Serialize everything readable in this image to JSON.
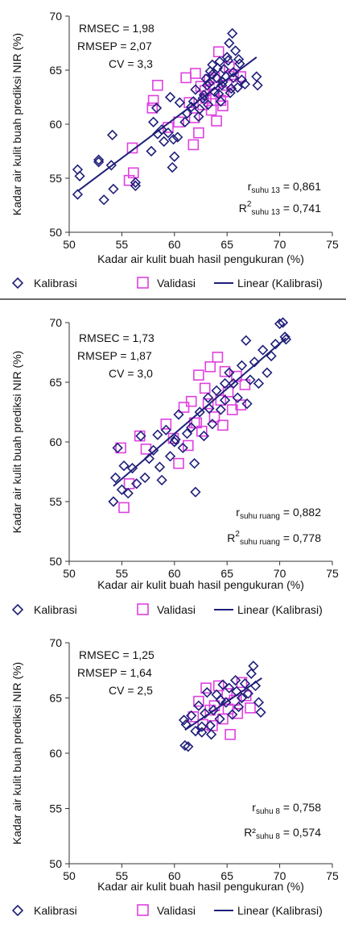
{
  "chart_data": [
    {
      "type": "scatter",
      "xlabel": "Kadar air kulit buah hasil pengukuran (%)",
      "ylabel": "Kadar air kulit buah prediksi NIR (%)",
      "xlim": [
        50,
        75
      ],
      "ylim": [
        50,
        70
      ],
      "xticks": [
        "50",
        "55",
        "60",
        "65",
        "70",
        "75"
      ],
      "yticks": [
        "50",
        "55",
        "60",
        "65",
        "70"
      ],
      "grid": false,
      "legend_position": "bottom",
      "stats": [
        "RMSEC = 1,98",
        "RMSEP = 2,07",
        "CV = 3,3"
      ],
      "r": {
        "symbol": "r",
        "sub": "suhu 13",
        "value": " = 0,861"
      },
      "r2": {
        "symbol": "R",
        "sup": "2",
        "sub": "suhu 13",
        "value": " = 0,741"
      },
      "legend": {
        "calibration": "Kalibrasi",
        "validation": "Validasi",
        "linear": "Linear (Kalibrasi)"
      },
      "colors": {
        "calibration": "#1f1f7a",
        "validation": "#e040e0",
        "linear": "#1f1f7a"
      },
      "linear_fit": {
        "x": [
          50.8,
          67.8
        ],
        "y": [
          53.8,
          66.2
        ]
      },
      "series": [
        {
          "name": "Kalibrasi",
          "marker": "diamond",
          "x": [
            50.8,
            51,
            50.8,
            52.8,
            52.8,
            53.3,
            54,
            54.2,
            54.1,
            56.3,
            56.3,
            57.8,
            58,
            58.3,
            58.8,
            59,
            59.4,
            59.6,
            59.8,
            60,
            60.3,
            60.5,
            61,
            61.2,
            61.6,
            62,
            62.3,
            62.7,
            63,
            63.2,
            63.4,
            63.6,
            63.8,
            64,
            64.2,
            64.3,
            64.5,
            64.7,
            64.9,
            65,
            65.2,
            65.3,
            65.5,
            65.6,
            65.8,
            66,
            66.2,
            66.4,
            66.7,
            67.8,
            67.9,
            62.8,
            63.1,
            63.6,
            64.1,
            64.6,
            65.1,
            65.6,
            58.4,
            59.9,
            61.8,
            62.4,
            63.3,
            64.4,
            65.4,
            66.1
          ],
          "y": [
            53.5,
            55.2,
            55.8,
            56.7,
            56.5,
            53,
            56.2,
            54,
            59,
            54.3,
            54.6,
            57.5,
            60.2,
            61.5,
            59.5,
            58.4,
            59.2,
            62.5,
            56,
            57,
            58.8,
            62,
            60.2,
            61,
            61.6,
            63.2,
            60.7,
            62.4,
            64.2,
            61.8,
            64.9,
            65.5,
            63,
            64.3,
            62.8,
            65.8,
            63.6,
            65.1,
            64.4,
            66.2,
            67.5,
            62.9,
            68.4,
            64.8,
            66.8,
            63.4,
            65.6,
            64.1,
            63.7,
            64.4,
            63.6,
            62.7,
            63.6,
            64.6,
            65.2,
            63.9,
            65.9,
            64.3,
            59.1,
            58.6,
            62.1,
            61.4,
            63.8,
            62.1,
            63.3,
            66
          ]
        },
        {
          "name": "Validasi",
          "marker": "square",
          "x": [
            56,
            56.1,
            55.7,
            57.9,
            58,
            58.4,
            59.4,
            60.4,
            61.1,
            61.4,
            61.8,
            62,
            62.3,
            62.5,
            62.7,
            62.9,
            63,
            63.3,
            63.5,
            63.8,
            64,
            64.2,
            64.4,
            64.7,
            65,
            65.2,
            65.6,
            66.3,
            61.9,
            63.7,
            64.6
          ],
          "y": [
            57.8,
            55.5,
            54.8,
            61.5,
            62.2,
            63.6,
            59.7,
            60.2,
            64.3,
            62,
            58.1,
            64.7,
            59.2,
            63.5,
            61.8,
            63.1,
            62.4,
            64.1,
            61.3,
            64.3,
            60.3,
            66.7,
            62.2,
            63,
            63.6,
            65.3,
            64.6,
            64.4,
            60.6,
            62.8,
            61.7
          ]
        }
      ]
    },
    {
      "type": "scatter",
      "xlabel": "Kadar air kulit buah hasil pengukuran (%)",
      "ylabel": "Kadar air kulit buah prediksi NIR (%)",
      "xlim": [
        50,
        75
      ],
      "ylim": [
        50,
        70
      ],
      "xticks": [
        "50",
        "55",
        "60",
        "65",
        "70",
        "75"
      ],
      "yticks": [
        "50",
        "55",
        "60",
        "65",
        "70"
      ],
      "grid": false,
      "legend_position": "bottom",
      "stats": [
        "RMSEC = 1,73",
        "RMSEP = 1,87",
        "CV = 3,0"
      ],
      "r": {
        "symbol": "r",
        "sub": "suhu ruang",
        "value": " = 0,882"
      },
      "r2": {
        "symbol": "R",
        "sup": "2",
        "sub": "suhu ruang",
        "value": " = 0,778"
      },
      "legend": {
        "calibration": "Kalibrasi",
        "validation": "Validasi",
        "linear": "Linear (Kalibrasi)"
      },
      "colors": {
        "calibration": "#1f1f7a",
        "validation": "#e040e0",
        "linear": "#1f1f7a"
      },
      "linear_fit": {
        "x": [
          54.2,
          70.6
        ],
        "y": [
          56.3,
          68.7
        ]
      },
      "series": [
        {
          "name": "Kalibrasi",
          "marker": "diamond",
          "x": [
            54.2,
            54.4,
            54.6,
            55,
            55.2,
            55.6,
            56,
            56.4,
            56.8,
            57.2,
            57.6,
            58,
            58.4,
            58.8,
            59.2,
            59.6,
            60,
            60.4,
            60.8,
            61.2,
            61.6,
            62,
            62.4,
            62.8,
            63.2,
            63.6,
            64,
            64.4,
            64.8,
            65.2,
            65.6,
            66,
            66.4,
            66.8,
            67.2,
            67.6,
            68,
            68.4,
            68.8,
            69.2,
            69.6,
            70,
            70.3,
            70.5,
            70.6,
            61.9,
            58.6,
            66.9,
            63.3,
            64.8,
            60.1
          ],
          "y": [
            55,
            57,
            59.5,
            56,
            58,
            55.7,
            57.8,
            56.5,
            60.5,
            57,
            58.6,
            59.3,
            60.6,
            56.8,
            61,
            58.8,
            60,
            62.3,
            59.5,
            60.7,
            61.2,
            55.8,
            62.5,
            60.5,
            63.7,
            61.5,
            64.3,
            62.7,
            63.5,
            65.8,
            64.9,
            63.7,
            66.4,
            68.5,
            65.2,
            66.7,
            64.9,
            67.7,
            65.8,
            67.2,
            68.2,
            69.9,
            70,
            68.8,
            68.6,
            58.2,
            57.9,
            63.2,
            62.8,
            64.9,
            60.2
          ]
        },
        {
          "name": "Validasi",
          "marker": "square",
          "x": [
            54.9,
            55.2,
            55.7,
            56.7,
            57.3,
            59.2,
            59.9,
            60.4,
            60.9,
            61.3,
            61.6,
            61.9,
            62.3,
            62.6,
            62.9,
            63.2,
            63.4,
            63.8,
            64.1,
            64.4,
            64.8,
            65.1,
            65.5,
            65.9,
            66.3,
            66.7,
            64.6,
            62.1
          ],
          "y": [
            59.5,
            54.5,
            56.5,
            60.5,
            59.4,
            61.5,
            60.3,
            58.2,
            62.9,
            59.7,
            63.4,
            61.6,
            65.6,
            60.9,
            64.5,
            63.2,
            66.3,
            62.1,
            67.1,
            63.5,
            65.9,
            64.2,
            62.7,
            65.5,
            63.1,
            64.8,
            61.4,
            61.6
          ]
        }
      ]
    },
    {
      "type": "scatter",
      "xlabel": "Kadar air kulit buah hasil pengukuran (%)",
      "ylabel": "Kadar air kulit buah prediksi NIR (%)",
      "xlim": [
        50,
        75
      ],
      "ylim": [
        50,
        70
      ],
      "xticks": [
        "50",
        "55",
        "60",
        "65",
        "70",
        "75"
      ],
      "yticks": [
        "50",
        "55",
        "60",
        "65",
        "70"
      ],
      "grid": false,
      "legend_position": "bottom",
      "stats": [
        "RMSEC = 1,25",
        "RMSEP = 1,64",
        "CV = 2,5"
      ],
      "r": {
        "symbol": "r",
        "sub": "suhu 8",
        "value": " = 0,758"
      },
      "r2": {
        "symbol": "R²",
        "sup": "",
        "sub": "suhu 8",
        "value": " = 0,574"
      },
      "legend": {
        "calibration": "Kalibrasi",
        "validation": "Validasi",
        "linear": "Linear (Kalibrasi)"
      },
      "colors": {
        "calibration": "#1f1f7a",
        "validation": "#e040e0",
        "linear": "#1f1f7a"
      },
      "linear_fit": {
        "x": [
          61,
          68.3
        ],
        "y": [
          62.1,
          66.8
        ]
      },
      "series": [
        {
          "name": "Kalibrasi",
          "marker": "diamond",
          "x": [
            60.9,
            61,
            61.1,
            61.3,
            61.6,
            62,
            62.3,
            62.6,
            62.9,
            63.1,
            63.4,
            63.7,
            64,
            64.3,
            64.6,
            64.9,
            65.2,
            65.5,
            65.8,
            66.1,
            66.4,
            66.7,
            67,
            67.3,
            67.5,
            67.7,
            68,
            68.2,
            63.5,
            64.4,
            65.9,
            62.6
          ],
          "y": [
            63,
            60.7,
            62.6,
            60.6,
            63.4,
            62,
            64.3,
            62.4,
            63.6,
            65.5,
            62.5,
            63.9,
            65.3,
            63.1,
            66.2,
            64.6,
            65.9,
            63.5,
            66.6,
            64.2,
            65,
            66.3,
            65.4,
            67.2,
            67.9,
            66.1,
            64.6,
            63.7,
            61.7,
            64.8,
            65.6,
            61.9
          ]
        },
        {
          "name": "Validasi",
          "marker": "square",
          "x": [
            61.8,
            62.3,
            62.7,
            63,
            63.4,
            63.8,
            64.2,
            64.6,
            65,
            65.3,
            65.7,
            66,
            66.4,
            66.8,
            67.2,
            63.6,
            65.1
          ],
          "y": [
            63.3,
            64.7,
            62.6,
            65.9,
            63.9,
            64.3,
            66.1,
            63.1,
            65.4,
            61.7,
            64.8,
            63.6,
            66.4,
            65.2,
            64.1,
            62.5,
            64
          ]
        }
      ]
    }
  ]
}
